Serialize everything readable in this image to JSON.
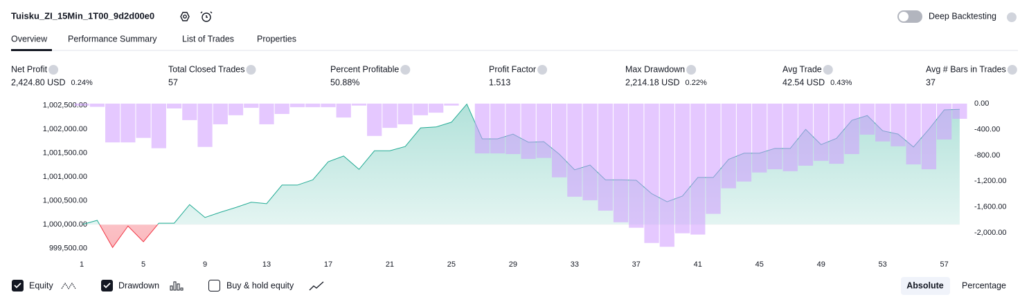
{
  "header": {
    "title": "Tuisku_ZI_15Min_1T00_9d2d00e0",
    "deep_backtesting": "Deep Backtesting"
  },
  "tabs": [
    "Overview",
    "Performance Summary",
    "List of Trades",
    "Properties"
  ],
  "metrics": [
    {
      "label": "Net Profit",
      "value": "2,424.80 USD",
      "percent": "0.24%",
      "color": "#089981"
    },
    {
      "label": "Total Closed Trades",
      "value": "57",
      "color": "#131722"
    },
    {
      "label": "Percent Profitable",
      "value": "50.88%",
      "color": "#089981"
    },
    {
      "label": "Profit Factor",
      "value": "1.513",
      "color": "#089981"
    },
    {
      "label": "Max Drawdown",
      "value": "2,214.18 USD",
      "percent": "0.22%",
      "color": "#f23645"
    },
    {
      "label": "Avg Trade",
      "value": "42.54 USD",
      "percent": "0.43%",
      "color": "#089981"
    },
    {
      "label": "Avg # Bars in Trades",
      "value": "37",
      "color": "#131722"
    }
  ],
  "chart_data": {
    "type": "line",
    "x": [
      1,
      2,
      3,
      4,
      5,
      6,
      7,
      8,
      9,
      10,
      11,
      12,
      13,
      14,
      15,
      16,
      17,
      18,
      19,
      20,
      21,
      22,
      23,
      24,
      25,
      26,
      27,
      28,
      29,
      30,
      31,
      32,
      33,
      34,
      35,
      36,
      37,
      38,
      39,
      40,
      41,
      42,
      43,
      44,
      45,
      46,
      47,
      48,
      49,
      50,
      51,
      52,
      53,
      54,
      55,
      56,
      57,
      58
    ],
    "series": [
      {
        "name": "Equity",
        "type": "line",
        "color": "#22ab94",
        "negative_color": "#f23645",
        "values": [
          1000000,
          1000090,
          999520,
          999970,
          999640,
          1000030,
          1000030,
          1000420,
          1000150,
          1000260,
          1000360,
          1000470,
          1000440,
          1000830,
          1000830,
          1000940,
          1001320,
          1001440,
          1001160,
          1001550,
          1001550,
          1001640,
          1002030,
          1002050,
          1002150,
          1002530,
          1001800,
          1001800,
          1001900,
          1001730,
          1001740,
          1001480,
          1001150,
          1001250,
          1000940,
          1000940,
          1000930,
          1000650,
          1000480,
          1000600,
          1000990,
          1000990,
          1001370,
          1001500,
          1001500,
          1001600,
          1001600,
          1002000,
          1001680,
          1001810,
          1002190,
          1002290,
          1001970,
          1001900,
          1001630,
          1002000,
          1002410,
          1002420
        ]
      },
      {
        "name": "Drawdown",
        "type": "bar",
        "axis": "y2",
        "color": "#cf9bff",
        "values": [
          -30,
          -50,
          -600,
          -600,
          -530,
          -690,
          -75,
          -255,
          -670,
          -320,
          -180,
          -65,
          -320,
          -160,
          -55,
          -55,
          -55,
          -215,
          -30,
          -500,
          -375,
          -320,
          -180,
          -140,
          -30,
          0,
          -770,
          -770,
          -780,
          -855,
          -840,
          -1140,
          -1440,
          -1495,
          -1655,
          -1835,
          -1920,
          -2155,
          -2214,
          -2005,
          -2025,
          -1705,
          -1310,
          -1205,
          -1065,
          -1015,
          -1045,
          -960,
          -885,
          -930,
          -780,
          -480,
          -585,
          -660,
          -940,
          -1015,
          -555,
          -235
        ]
      }
    ],
    "xlim": [
      0.5,
      58.5
    ],
    "xticks": [
      1,
      5,
      9,
      13,
      17,
      21,
      25,
      29,
      33,
      37,
      41,
      45,
      49,
      53,
      57
    ],
    "ylim": [
      999350,
      1002540
    ],
    "yticks": [
      {
        "value": 1002500,
        "label": "1,002,500.00"
      },
      {
        "value": 1002000,
        "label": "1,002,000.00"
      },
      {
        "value": 1001500,
        "label": "1,001,500.00"
      },
      {
        "value": 1001000,
        "label": "1,001,000.00"
      },
      {
        "value": 1000500,
        "label": "1,000,500.00"
      },
      {
        "value": 1000000,
        "label": "1,000,000.00"
      },
      {
        "value": 999500,
        "label": "999,500.00"
      }
    ],
    "y2lim": [
      -2350,
      0
    ],
    "y2ticks": [
      {
        "value": 0,
        "label": "0.00"
      },
      {
        "value": -400,
        "label": "-400.00"
      },
      {
        "value": -800,
        "label": "-800.00"
      },
      {
        "value": -1200,
        "label": "-1,200.00"
      },
      {
        "value": -1600,
        "label": "-1,600.00"
      },
      {
        "value": -2000,
        "label": "-2,000.00"
      }
    ]
  },
  "buy_hold": "Buy & hold equity",
  "modes": [
    "Absolute",
    "Percentage"
  ]
}
